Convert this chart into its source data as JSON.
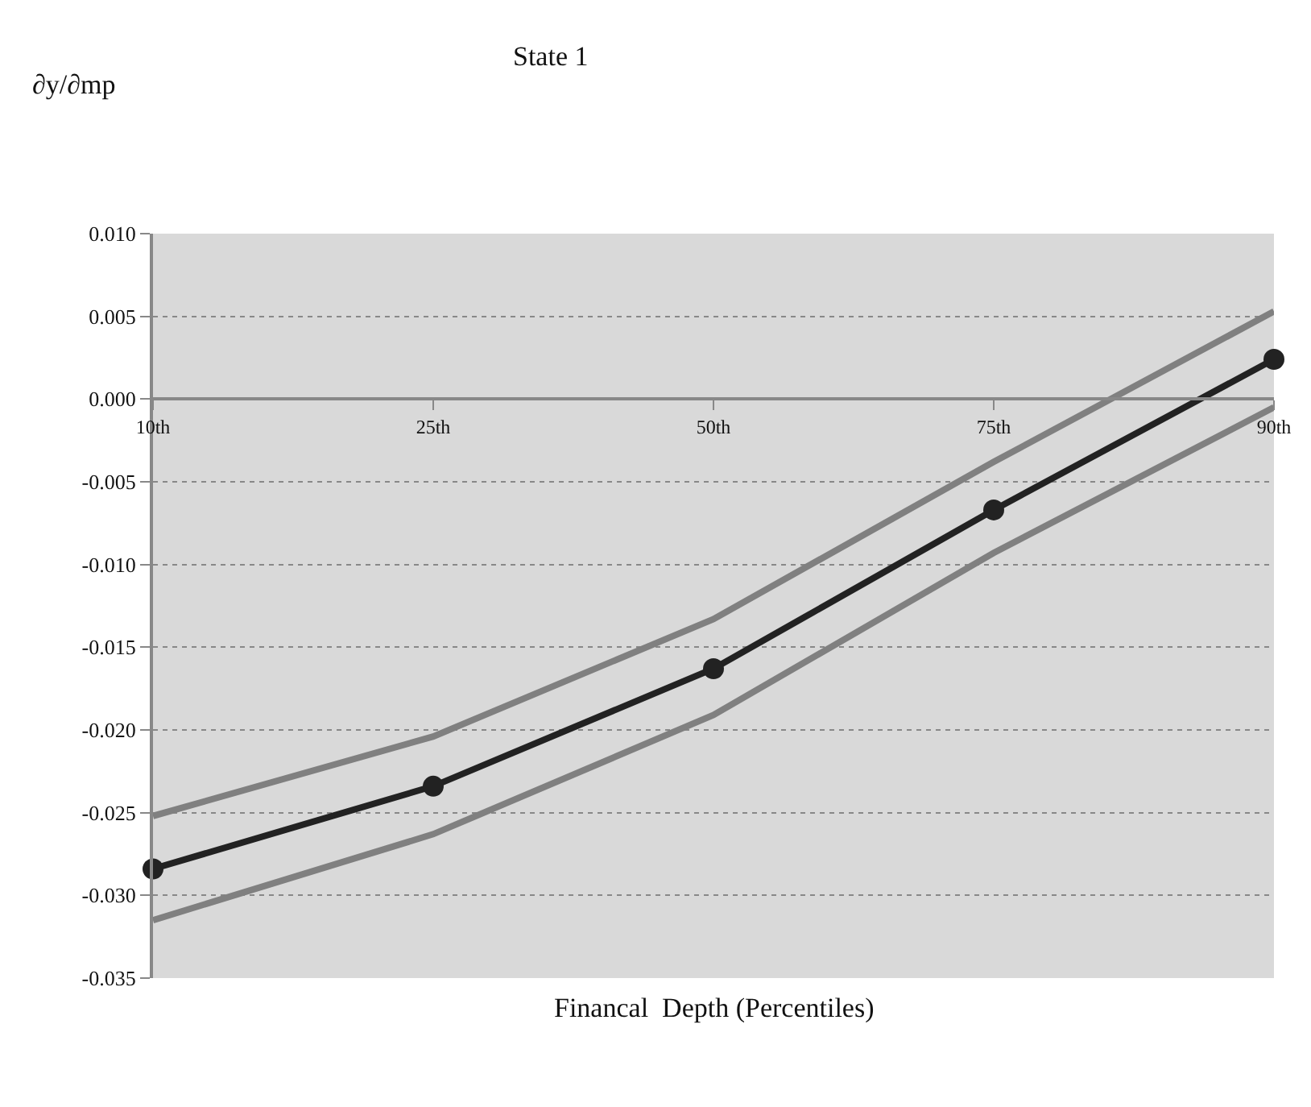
{
  "chart_data": {
    "type": "line",
    "title": "State 1",
    "ylabel": "∂y/∂mp",
    "xlabel": "Financal  Depth (Percentiles)",
    "categories": [
      "10th",
      "25th",
      "50th",
      "75th",
      "90th"
    ],
    "series": [
      {
        "color": "#808080",
        "values": [
          -0.0252,
          -0.0204,
          -0.0133,
          -0.0038,
          0.0053
        ],
        "marker": "none"
      },
      {
        "color": "#808080",
        "values": [
          -0.0315,
          -0.0263,
          -0.0191,
          -0.0093,
          -0.0005
        ],
        "marker": "none"
      },
      {
        "color": "#222222",
        "values": [
          -0.0284,
          -0.0234,
          -0.0163,
          -0.0067,
          0.0024
        ],
        "marker": "circle"
      }
    ],
    "ylim": [
      -0.035,
      0.01
    ],
    "yticks": [
      {
        "value": -0.035,
        "label": "-0.035"
      },
      {
        "value": -0.03,
        "label": "-0.030"
      },
      {
        "value": -0.025,
        "label": "-0.025"
      },
      {
        "value": -0.02,
        "label": "-0.020"
      },
      {
        "value": -0.015,
        "label": "-0.015"
      },
      {
        "value": -0.01,
        "label": "-0.010"
      },
      {
        "value": -0.005,
        "label": "-0.005"
      },
      {
        "value": 0,
        "label": "0.000"
      },
      {
        "value": 0.005,
        "label": "0.005"
      },
      {
        "value": 0.01,
        "label": "0.010"
      }
    ],
    "grid": "y",
    "line_style": "solid"
  }
}
